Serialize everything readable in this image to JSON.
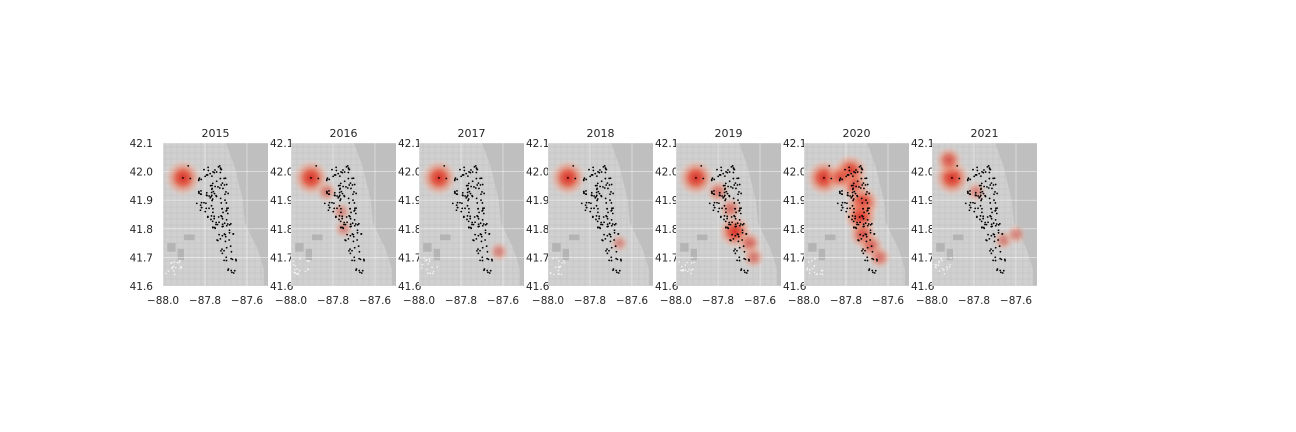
{
  "figure": {
    "facet_titles": [
      "2015",
      "2016",
      "2017",
      "2018",
      "2019",
      "2020",
      "2021"
    ]
  },
  "chart_data": {
    "type": "scatter",
    "subtype": "faceted map density with point overlay",
    "facets": [
      "2015",
      "2016",
      "2017",
      "2018",
      "2019",
      "2020",
      "2021"
    ],
    "xlim": [
      -88.0,
      -87.5
    ],
    "ylim": [
      41.6,
      42.1
    ],
    "xticks": [
      -88.0,
      -87.8,
      -87.6
    ],
    "yticks": [
      41.6,
      41.7,
      41.8,
      41.9,
      42.0,
      42.1
    ],
    "xtick_labels": [
      "−88.0",
      "−87.8",
      "−87.6"
    ],
    "ytick_labels": [
      "41.6",
      "41.7",
      "41.8",
      "41.9",
      "42.0",
      "42.1"
    ],
    "xlabel": "",
    "ylabel": "",
    "grid": true,
    "background": "grayscale basemap",
    "colors": {
      "hotspot": "#d62f27",
      "hotspot_mid": "#f08a6e",
      "hotspot_light": "#fcd2c0",
      "points": "#000000",
      "ocean": "#bfbfbf"
    },
    "hotspots": [
      {
        "facet": "2015",
        "points": [
          [
            -87.905,
            41.978,
            1.0
          ]
        ]
      },
      {
        "facet": "2016",
        "points": [
          [
            -87.905,
            41.978,
            1.0
          ],
          [
            -87.83,
            41.93,
            0.25
          ],
          [
            -87.76,
            41.86,
            0.15
          ],
          [
            -87.75,
            41.8,
            0.15
          ]
        ]
      },
      {
        "facet": "2017",
        "points": [
          [
            -87.905,
            41.978,
            1.0
          ],
          [
            -87.62,
            41.72,
            0.2
          ]
        ]
      },
      {
        "facet": "2018",
        "points": [
          [
            -87.905,
            41.978,
            1.0
          ],
          [
            -87.66,
            41.75,
            0.12
          ]
        ]
      },
      {
        "facet": "2019",
        "points": [
          [
            -87.905,
            41.978,
            1.0
          ],
          [
            -87.8,
            41.93,
            0.35
          ],
          [
            -87.74,
            41.87,
            0.35
          ],
          [
            -87.72,
            41.79,
            0.85
          ],
          [
            -87.65,
            41.75,
            0.4
          ],
          [
            -87.63,
            41.7,
            0.3
          ]
        ]
      },
      {
        "facet": "2020",
        "points": [
          [
            -87.905,
            41.978,
            1.0
          ],
          [
            -87.78,
            42.0,
            0.95
          ],
          [
            -87.76,
            41.95,
            0.6
          ],
          [
            -87.72,
            41.89,
            0.9
          ],
          [
            -87.73,
            41.84,
            0.85
          ],
          [
            -87.72,
            41.78,
            0.6
          ],
          [
            -87.68,
            41.74,
            0.45
          ],
          [
            -87.64,
            41.7,
            0.35
          ],
          [
            -87.83,
            41.98,
            0.5
          ]
        ]
      },
      {
        "facet": "2021",
        "points": [
          [
            -87.905,
            41.978,
            1.0
          ],
          [
            -87.92,
            42.04,
            0.55
          ],
          [
            -87.79,
            41.93,
            0.2
          ],
          [
            -87.66,
            41.76,
            0.2
          ],
          [
            -87.6,
            41.78,
            0.2
          ]
        ]
      }
    ]
  }
}
